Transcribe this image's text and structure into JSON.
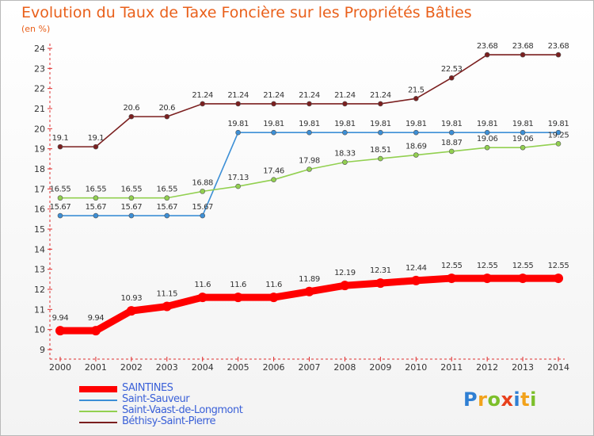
{
  "title": "Evolution du Taux de Taxe Foncière sur les Propriétés Bâties",
  "unit_label": "(en %)",
  "logo_letters": [
    {
      "ch": "P",
      "color": "#2f7fd3"
    },
    {
      "ch": "r",
      "color": "#f2a21b"
    },
    {
      "ch": "o",
      "color": "#7cbf2a"
    },
    {
      "ch": "x",
      "color": "#e8401c"
    },
    {
      "ch": "i",
      "color": "#2f7fd3"
    },
    {
      "ch": "t",
      "color": "#f2a21b"
    },
    {
      "ch": "i",
      "color": "#7cbf2a"
    }
  ],
  "chart_data": {
    "type": "line",
    "x": [
      2000,
      2001,
      2002,
      2003,
      2004,
      2005,
      2006,
      2007,
      2008,
      2009,
      2010,
      2011,
      2012,
      2013,
      2014
    ],
    "ylim": [
      9,
      24
    ],
    "yticks": [
      9,
      10,
      11,
      12,
      13,
      14,
      15,
      16,
      17,
      18,
      19,
      20,
      21,
      22,
      23,
      24
    ],
    "grid": false,
    "legend_position": "bottom-left",
    "series": [
      {
        "name": "SAINTINES",
        "color": "#ff0000",
        "emphasis": true,
        "values": [
          9.94,
          9.94,
          10.93,
          11.15,
          11.6,
          11.6,
          11.6,
          11.89,
          12.19,
          12.31,
          12.44,
          12.55,
          12.55,
          12.55,
          12.55
        ],
        "labels": [
          "9.94",
          "9.94",
          "10.93",
          "11.15",
          "11.6",
          "11.6",
          "11.6",
          "11.89",
          "12.19",
          "12.31",
          "12.44",
          "12.55",
          "12.55",
          "12.55",
          "12.55"
        ]
      },
      {
        "name": "Saint-Sauveur",
        "color": "#3c8fd6",
        "values": [
          15.67,
          15.67,
          15.67,
          15.67,
          15.67,
          19.81,
          19.81,
          19.81,
          19.81,
          19.81,
          19.81,
          19.81,
          19.81,
          19.81,
          19.81
        ],
        "labels": [
          "15.67",
          "15.67",
          "15.67",
          "15.67",
          "15.67",
          "19.81",
          "19.81",
          "19.81",
          "19.81",
          "19.81",
          "19.81",
          "19.81",
          "19.81",
          "19.81",
          "19.81"
        ]
      },
      {
        "name": "Saint-Vaast-de-Longmont",
        "color": "#92d050",
        "values": [
          16.55,
          16.55,
          16.55,
          16.55,
          16.88,
          17.13,
          17.46,
          17.98,
          18.33,
          18.51,
          18.69,
          18.87,
          19.06,
          19.06,
          19.25
        ],
        "labels": [
          "16.55",
          "16.55",
          "16.55",
          "16.55",
          "16.88",
          "17.13",
          "17.46",
          "17.98",
          "18.33",
          "18.51",
          "18.69",
          "18.87",
          "19.06",
          "19.06",
          "19.25"
        ]
      },
      {
        "name": "Béthisy-Saint-Pierre",
        "color": "#7b1f1f",
        "values": [
          19.1,
          19.1,
          20.6,
          20.6,
          21.24,
          21.24,
          21.24,
          21.24,
          21.24,
          21.24,
          21.5,
          22.53,
          23.68,
          23.68,
          23.68
        ],
        "labels": [
          "19.1",
          "19.1",
          "20.6",
          "20.6",
          "21.24",
          "21.24",
          "21.24",
          "21.24",
          "21.24",
          "21.24",
          "21.5",
          "22.53",
          "23.68",
          "23.68",
          "23.68"
        ]
      }
    ]
  }
}
